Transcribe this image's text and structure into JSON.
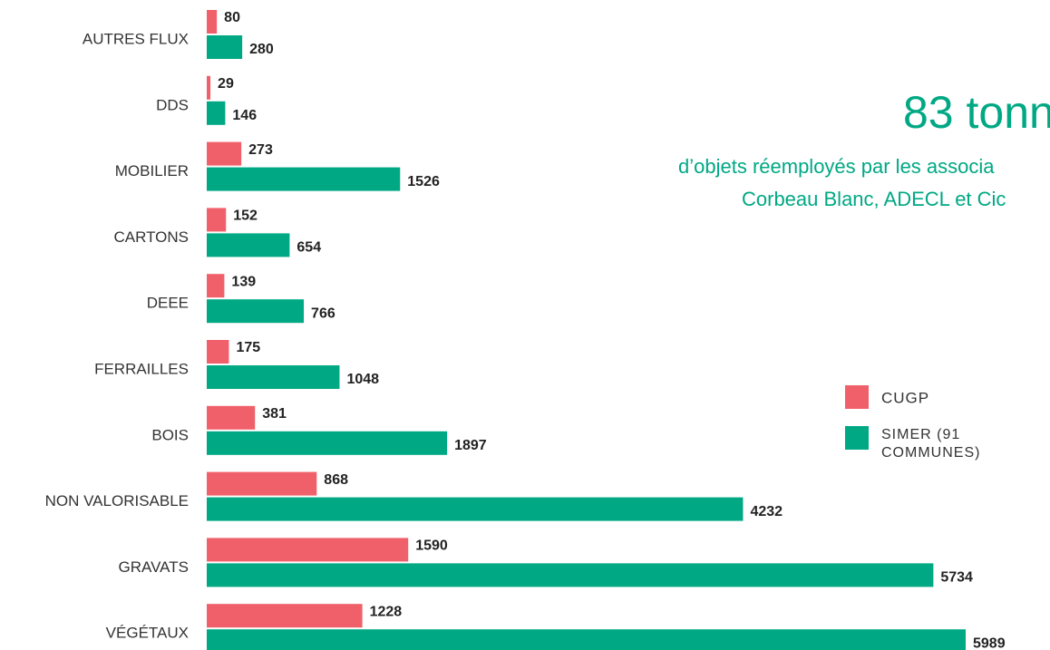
{
  "chart_data": {
    "type": "bar",
    "orientation": "horizontal",
    "title": "83 tonn",
    "subtitle": [
      "d’objets réemployés par les associa",
      "Corbeau Blanc, ADECL et Cic"
    ],
    "categories": [
      "AUTRES FLUX",
      "DDS",
      "MOBILIER",
      "CARTONS",
      "DEEE",
      "FERRAILLES",
      "BOIS",
      "NON VALORISABLE",
      "GRAVATS",
      "VÉGÉTAUX"
    ],
    "series": [
      {
        "name": "CUGP",
        "color": "#f0606a",
        "values": [
          80,
          29,
          273,
          152,
          139,
          175,
          381,
          868,
          1590,
          1228
        ]
      },
      {
        "name": "SIMER (91 COMMUNES)",
        "color": "#00a884",
        "values": [
          280,
          146,
          1526,
          654,
          766,
          1048,
          1897,
          4232,
          5734,
          5989
        ]
      }
    ]
  }
}
